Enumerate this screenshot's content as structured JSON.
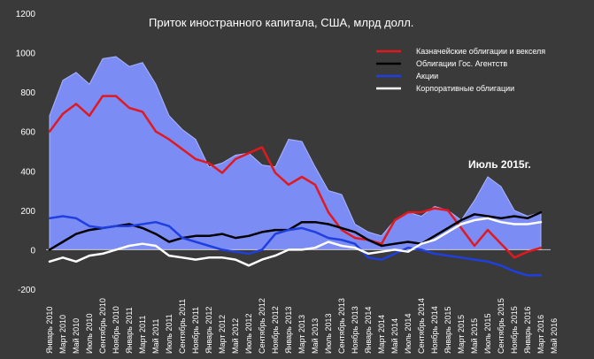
{
  "chart_data": {
    "type": "line",
    "title": "Приток иностранного капитала, США, млрд долл.",
    "annotation": "Июль 2015г.",
    "ylim": [
      -200,
      1200
    ],
    "yticks": [
      -200,
      0,
      200,
      400,
      600,
      800,
      1000,
      1200
    ],
    "ytick_labels": [
      "-200",
      "0",
      "200",
      "400",
      "600",
      "800",
      "1000",
      "1200"
    ],
    "grid": false,
    "legend_position": "top-right",
    "x": [
      "2010-01",
      "2010-03",
      "2010-05",
      "2010-07",
      "2010-09",
      "2010-11",
      "2011-01",
      "2011-03",
      "2011-05",
      "2011-07",
      "2011-09",
      "2011-11",
      "2012-01",
      "2012-03",
      "2012-05",
      "2012-07",
      "2012-09",
      "2012-11",
      "2013-01",
      "2013-03",
      "2013-05",
      "2013-07",
      "2013-09",
      "2013-11",
      "2014-01",
      "2014-03",
      "2014-05",
      "2014-07",
      "2014-09",
      "2014-11",
      "2015-01",
      "2015-03",
      "2015-05",
      "2015-07",
      "2015-09",
      "2015-11",
      "2016-01",
      "2016-03"
    ],
    "x_tick_labels": [
      "Январь 2010",
      "Март 2010",
      "Май 2010",
      "Июль 2010",
      "Сентябрь 2010",
      "Ноябрь 2010",
      "Январь 2011",
      "Март 2011",
      "Май 2011",
      "Июль 2011",
      "Сентябрь 2011",
      "Ноябрь 2011",
      "Январь 2012",
      "Март 2012",
      "Май 2012",
      "Июль 2012",
      "Сентябрь 2012",
      "Ноябрь 2012",
      "Январь 2013",
      "Март 2013",
      "Май 2013",
      "Июль 2013",
      "Сентябрь 2013",
      "Ноябрь 2013",
      "Январь 2014",
      "Март 2014",
      "Май 2014",
      "Июль 2014",
      "Сентябрь 2014",
      "Ноябрь 2014",
      "Январь 2015",
      "Март 2015",
      "Май 2015",
      "Июль 2015",
      "Сентябрь 2015",
      "Ноябрь 2015",
      "Январь 2016",
      "Март 2016",
      "Май 2016"
    ],
    "area": {
      "color": "#7b8cf5",
      "values": [
        680,
        860,
        900,
        840,
        970,
        980,
        930,
        950,
        840,
        680,
        610,
        560,
        420,
        440,
        480,
        490,
        430,
        420,
        560,
        550,
        420,
        300,
        280,
        130,
        90,
        70,
        150,
        190,
        170,
        220,
        200,
        150,
        250,
        370,
        320,
        200,
        170,
        190
      ]
    },
    "series": [
      {
        "name": "Казначейские облигации и векселя",
        "color": "#e0191f",
        "values": [
          600,
          690,
          740,
          680,
          780,
          780,
          720,
          700,
          600,
          560,
          510,
          460,
          440,
          390,
          460,
          490,
          520,
          390,
          330,
          370,
          330,
          190,
          100,
          60,
          50,
          30,
          150,
          190,
          190,
          210,
          200,
          110,
          20,
          100,
          30,
          -40,
          -10,
          10
        ]
      },
      {
        "name": "Облигации Гос. Агентств",
        "color": "#000000",
        "values": [
          0,
          40,
          80,
          100,
          110,
          120,
          130,
          110,
          80,
          40,
          60,
          70,
          70,
          80,
          60,
          70,
          90,
          100,
          100,
          140,
          140,
          130,
          110,
          90,
          50,
          20,
          30,
          40,
          30,
          70,
          110,
          150,
          180,
          170,
          160,
          170,
          160,
          190
        ]
      },
      {
        "name": "Акции",
        "color": "#1f3fe0",
        "values": [
          160,
          170,
          160,
          120,
          110,
          120,
          120,
          130,
          140,
          120,
          60,
          40,
          20,
          0,
          -10,
          -20,
          0,
          80,
          100,
          110,
          90,
          60,
          50,
          30,
          -40,
          -50,
          -20,
          10,
          0,
          -20,
          -30,
          -40,
          -50,
          -60,
          -80,
          -110,
          -130,
          -130
        ]
      },
      {
        "name": "Корпоративные облигации",
        "color": "#ffffff",
        "values": [
          -60,
          -40,
          -60,
          -30,
          -20,
          0,
          20,
          30,
          20,
          -30,
          -40,
          -50,
          -40,
          -40,
          -50,
          -80,
          -50,
          -30,
          0,
          0,
          10,
          40,
          20,
          10,
          -20,
          -10,
          0,
          -10,
          30,
          50,
          90,
          130,
          150,
          160,
          140,
          130,
          130,
          140
        ]
      }
    ]
  }
}
